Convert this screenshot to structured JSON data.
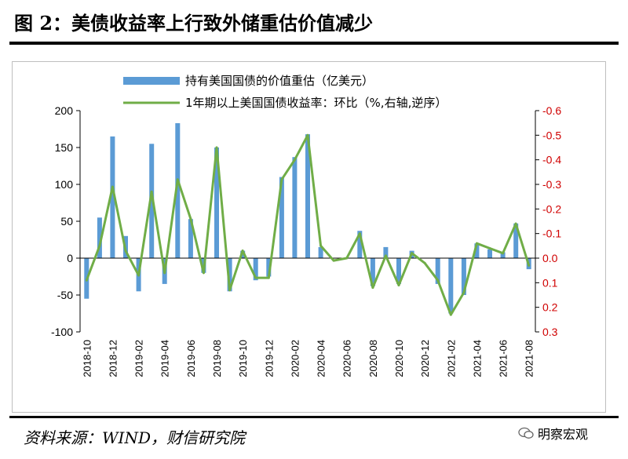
{
  "header": {
    "title": "图 2：美债收益率上行致外储重估价值减少"
  },
  "footer": {
    "source": "资料来源：WIND，财信研究院",
    "watermark": "明察宏观"
  },
  "colors": {
    "bar": "#5b9bd5",
    "line": "#70ad47",
    "right_axis": "#d00000"
  },
  "chart_data": {
    "type": "bar+line",
    "title": "",
    "x": [
      "2018-10",
      "2018-11",
      "2018-12",
      "2019-01",
      "2019-02",
      "2019-03",
      "2019-04",
      "2019-05",
      "2019-06",
      "2019-07",
      "2019-08",
      "2019-09",
      "2019-10",
      "2019-11",
      "2019-12",
      "2020-01",
      "2020-02",
      "2020-03",
      "2020-04",
      "2020-05",
      "2020-06",
      "2020-07",
      "2020-08",
      "2020-09",
      "2020-10",
      "2020-11",
      "2020-12",
      "2021-01",
      "2021-02",
      "2021-03",
      "2021-04",
      "2021-05",
      "2021-06",
      "2021-07",
      "2021-08"
    ],
    "xtick_labels": [
      "2018-10",
      "2018-12",
      "2019-02",
      "2019-04",
      "2019-06",
      "2019-08",
      "2019-10",
      "2019-12",
      "2020-02",
      "2020-04",
      "2020-06",
      "2020-08",
      "2020-10",
      "2020-12",
      "2021-02",
      "2021-04",
      "2021-06",
      "2021-08"
    ],
    "series": [
      {
        "name": "持有美国国债的价值重估（亿美元）",
        "type": "bar",
        "axis": "left",
        "values": [
          -55,
          55,
          165,
          30,
          -45,
          155,
          -35,
          183,
          53,
          -20,
          150,
          -45,
          10,
          -30,
          -25,
          110,
          137,
          168,
          15,
          0,
          0,
          37,
          -38,
          15,
          -35,
          10,
          0,
          -35,
          -75,
          -50,
          20,
          12,
          8,
          47,
          -15
        ]
      },
      {
        "name": "1年期以上美国国债收益率：环比（%,右轴,逆序）",
        "type": "line",
        "axis": "right",
        "values": [
          0.09,
          -0.05,
          -0.29,
          -0.03,
          0.07,
          -0.27,
          0.06,
          -0.32,
          -0.16,
          0.06,
          -0.45,
          0.13,
          -0.03,
          0.08,
          0.08,
          -0.32,
          -0.4,
          -0.5,
          -0.05,
          0.01,
          0.0,
          -0.1,
          0.12,
          -0.01,
          0.11,
          -0.02,
          0.02,
          0.09,
          0.23,
          0.14,
          -0.06,
          -0.04,
          -0.02,
          -0.14,
          0.03
        ]
      }
    ],
    "y_left": {
      "min": -100,
      "max": 200,
      "ticks": [
        "-100",
        "-50",
        "0",
        "50",
        "100",
        "150",
        "200"
      ]
    },
    "y_right": {
      "min": -0.6,
      "max": 0.3,
      "inverted": true,
      "ticks": [
        "0.3",
        "0.2",
        "0.1",
        "0.0",
        "-0.1",
        "-0.2",
        "-0.3",
        "-0.4",
        "-0.5",
        "-0.6"
      ]
    },
    "legend_position": "top-center"
  }
}
